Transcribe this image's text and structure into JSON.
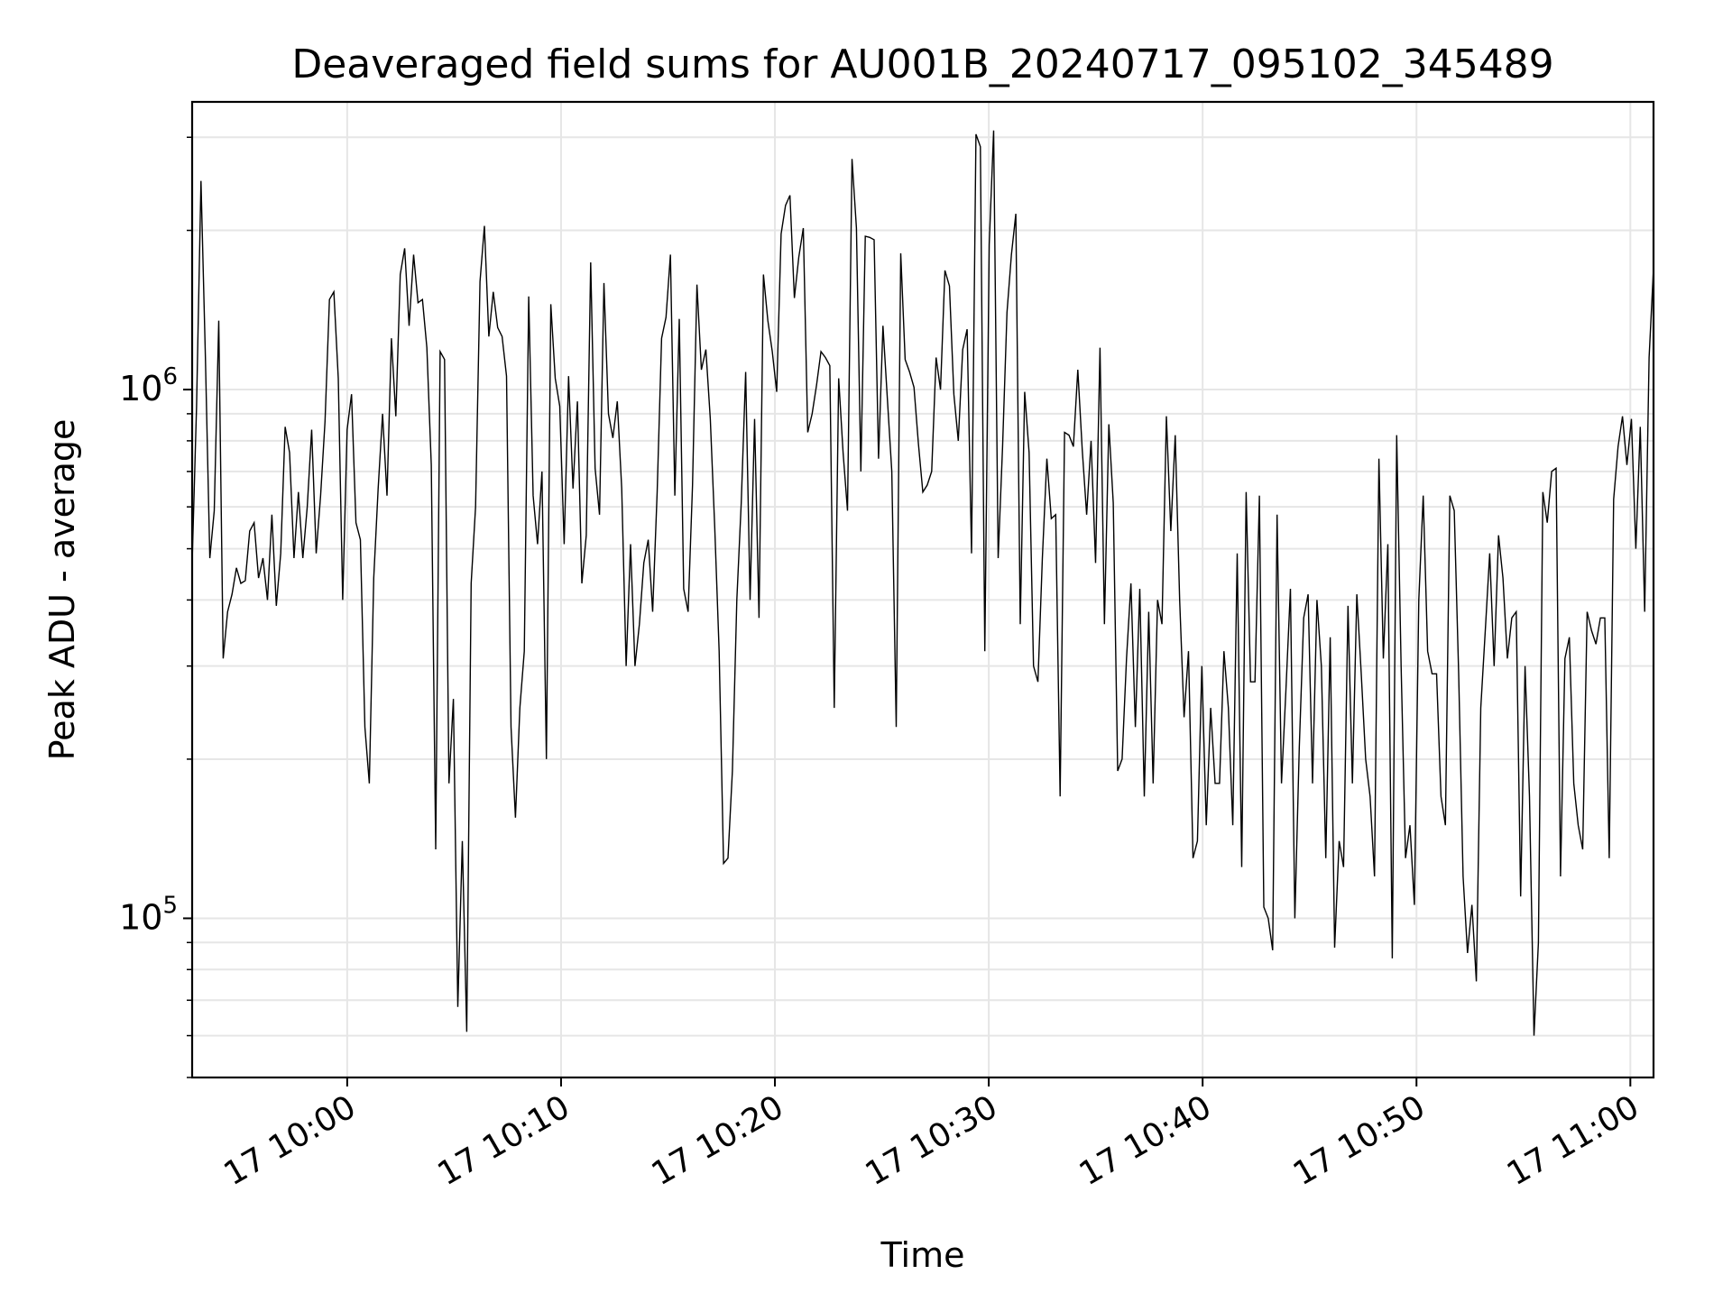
{
  "chart_data": {
    "type": "line",
    "title": "Deaveraged field sums for AU001B_20240717_095102_345489",
    "xlabel": "Time",
    "ylabel": "Peak ADU - average",
    "yscale": "log",
    "ylim": [
      50000,
      3500000
    ],
    "xlim": [
      "2024-07-17 09:52:45",
      "2024-07-17 11:01:05"
    ],
    "grid": true,
    "line_color": "#000000",
    "x_ticks": [
      {
        "time": "2024-07-17 10:00",
        "label": "17 10:00"
      },
      {
        "time": "2024-07-17 10:10",
        "label": "17 10:10"
      },
      {
        "time": "2024-07-17 10:20",
        "label": "17 10:20"
      },
      {
        "time": "2024-07-17 10:30",
        "label": "17 10:30"
      },
      {
        "time": "2024-07-17 10:40",
        "label": "17 10:40"
      },
      {
        "time": "2024-07-17 10:50",
        "label": "17 10:50"
      },
      {
        "time": "2024-07-17 11:00",
        "label": "17 11:00"
      }
    ],
    "y_ticks": [
      {
        "value": 100000,
        "base": "10",
        "exp": "5"
      },
      {
        "value": 1000000,
        "base": "10",
        "exp": "6"
      }
    ],
    "series": [
      {
        "start": "2024-07-17 09:52:45",
        "end": "2024-07-17 11:01:05",
        "y": [
          470000,
          930000,
          2480000,
          1150000,
          480000,
          590000,
          1350000,
          310000,
          380000,
          410000,
          460000,
          430000,
          435000,
          540000,
          560000,
          440000,
          480000,
          400000,
          580000,
          390000,
          490000,
          850000,
          760000,
          480000,
          640000,
          480000,
          600000,
          840000,
          490000,
          630000,
          870000,
          1480000,
          1530000,
          1050000,
          400000,
          840000,
          980000,
          560000,
          520000,
          230000,
          180000,
          440000,
          650000,
          900000,
          630000,
          1250000,
          890000,
          1650000,
          1850000,
          1320000,
          1800000,
          1460000,
          1480000,
          1200000,
          720000,
          135000,
          1180000,
          1140000,
          180000,
          260000,
          68000,
          140000,
          61000,
          430000,
          600000,
          1600000,
          2040000,
          1260000,
          1530000,
          1310000,
          1260000,
          1060000,
          230000,
          155000,
          250000,
          320000,
          1500000,
          630000,
          510000,
          700000,
          200000,
          1450000,
          1050000,
          930000,
          510000,
          1060000,
          650000,
          950000,
          430000,
          530000,
          1740000,
          710000,
          580000,
          1590000,
          900000,
          810000,
          950000,
          650000,
          300000,
          510000,
          300000,
          360000,
          470000,
          520000,
          380000,
          640000,
          1250000,
          1370000,
          1800000,
          630000,
          1360000,
          420000,
          380000,
          660000,
          1580000,
          1090000,
          1190000,
          880000,
          550000,
          320000,
          127000,
          130000,
          190000,
          400000,
          610000,
          1080000,
          400000,
          880000,
          370000,
          1650000,
          1350000,
          1180000,
          990000,
          1970000,
          2230000,
          2330000,
          1490000,
          1780000,
          2020000,
          830000,
          900000,
          1020000,
          1180000,
          1150000,
          1110000,
          250000,
          1050000,
          760000,
          590000,
          2730000,
          2020000,
          700000,
          1950000,
          1940000,
          1920000,
          740000,
          1320000,
          960000,
          700000,
          230000,
          1810000,
          1140000,
          1080000,
          1010000,
          790000,
          640000,
          660000,
          700000,
          1150000,
          1000000,
          1680000,
          1570000,
          980000,
          800000,
          1190000,
          1300000,
          490000,
          3040000,
          2880000,
          320000,
          1880000,
          3090000,
          480000,
          780000,
          1400000,
          1800000,
          2150000,
          360000,
          990000,
          760000,
          300000,
          280000,
          480000,
          740000,
          570000,
          580000,
          170000,
          830000,
          820000,
          780000,
          1090000,
          770000,
          580000,
          800000,
          470000,
          1200000,
          360000,
          860000,
          610000,
          190000,
          200000,
          310000,
          430000,
          230000,
          420000,
          170000,
          380000,
          180000,
          400000,
          360000,
          890000,
          540000,
          820000,
          400000,
          240000,
          320000,
          130000,
          140000,
          300000,
          150000,
          250000,
          180000,
          180000,
          320000,
          250000,
          150000,
          490000,
          125000,
          640000,
          280000,
          280000,
          630000,
          105000,
          100000,
          87000,
          580000,
          180000,
          270000,
          420000,
          100000,
          210000,
          370000,
          410000,
          180000,
          400000,
          300000,
          130000,
          340000,
          88000,
          140000,
          125000,
          390000,
          180000,
          410000,
          290000,
          200000,
          170000,
          120000,
          740000,
          310000,
          510000,
          84000,
          820000,
          300000,
          130000,
          150000,
          106000,
          400000,
          630000,
          320000,
          290000,
          290000,
          170000,
          150000,
          630000,
          590000,
          290000,
          120000,
          86000,
          106000,
          76000,
          250000,
          350000,
          490000,
          300000,
          530000,
          440000,
          310000,
          370000,
          380000,
          110000,
          300000,
          170000,
          60000,
          90000,
          640000,
          560000,
          700000,
          710000,
          120000,
          310000,
          340000,
          180000,
          150000,
          135000,
          380000,
          350000,
          330000,
          370000,
          370000,
          130000,
          620000,
          780000,
          890000,
          720000,
          880000,
          500000,
          850000,
          380000,
          1150000,
          1700000
        ]
      }
    ]
  }
}
